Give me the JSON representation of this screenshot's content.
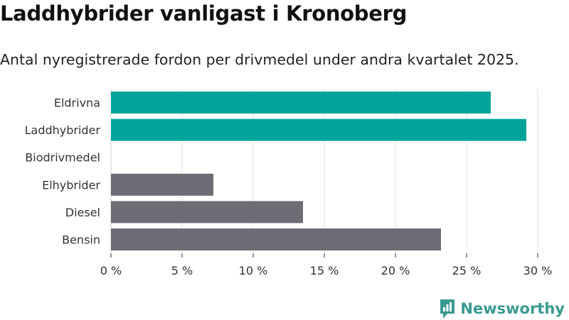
{
  "header": {
    "title": "Laddhybrider vanligast i Kronoberg",
    "subtitle": "Antal nyregistrerade fordon per drivmedel under andra kvartalet 2025."
  },
  "brand": {
    "name": "Newsworthy",
    "icon": "newsworthy-logo-icon"
  },
  "colors": {
    "highlight": "#00a49a",
    "other": "#6e6c74",
    "grid": "#e0e0e0"
  },
  "chart_data": {
    "type": "bar",
    "orientation": "horizontal",
    "categories": [
      "Eldrivna",
      "Laddhybrider",
      "Biodrivmedel",
      "Elhybrider",
      "Diesel",
      "Bensin"
    ],
    "values": [
      26.7,
      29.2,
      0,
      7.2,
      13.5,
      23.2
    ],
    "highlighted": [
      true,
      true,
      false,
      false,
      false,
      false
    ],
    "xlim": [
      0,
      30
    ],
    "xticks": [
      0,
      5,
      10,
      15,
      20,
      25,
      30
    ],
    "tick_labels": [
      "0 %",
      "5 %",
      "10 %",
      "15 %",
      "20 %",
      "25 %",
      "30 %"
    ],
    "grid": "vertical",
    "legend": "none"
  }
}
